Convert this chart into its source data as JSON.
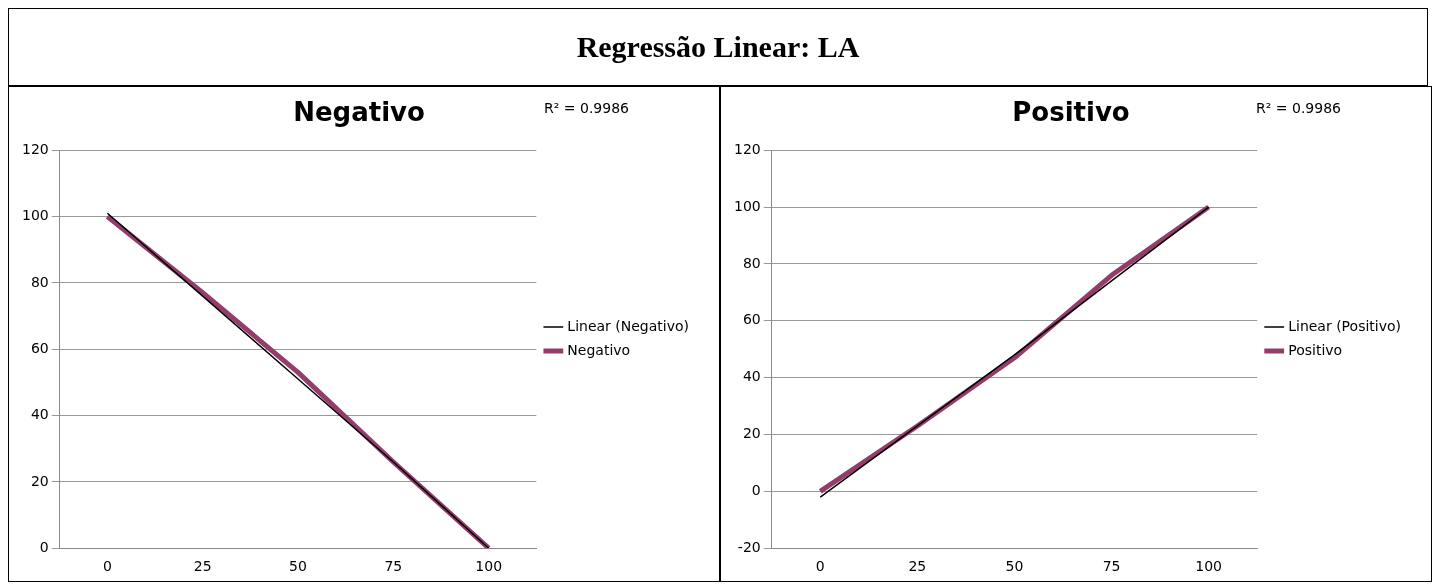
{
  "chart_data": [
    {
      "type": "other",
      "title": "Regressão Linear: LA"
    },
    {
      "type": "line",
      "title": "Negativo",
      "categories": [
        "0",
        "25",
        "50",
        "75",
        "100"
      ],
      "series": [
        {
          "name": "Negativo",
          "color": "#943d6b",
          "values": [
            100,
            77,
            53,
            26,
            0
          ]
        },
        {
          "name": "Linear (Negativo)",
          "color": "#000000",
          "values": [
            101,
            76,
            51,
            26,
            0
          ]
        }
      ],
      "ylim": [
        0,
        120
      ],
      "yticks": [
        0,
        20,
        40,
        60,
        80,
        100,
        120
      ],
      "grid": "y",
      "legend": "right",
      "marker": "none",
      "annotations": [
        "R² = 0.9986"
      ]
    },
    {
      "type": "line",
      "title": "Positivo",
      "categories": [
        "0",
        "25",
        "50",
        "75",
        "100"
      ],
      "series": [
        {
          "name": "Positivo",
          "color": "#943d6b",
          "values": [
            0,
            23,
            47,
            76,
            100
          ]
        },
        {
          "name": "Linear (Positivo)",
          "color": "#000000",
          "values": [
            -2,
            23,
            48,
            74,
            100
          ]
        }
      ],
      "ylim": [
        -20,
        120
      ],
      "yticks": [
        -20,
        0,
        20,
        40,
        60,
        80,
        100,
        120
      ],
      "grid": "y",
      "legend": "right",
      "marker": "none",
      "annotations": [
        "R² = 0.9986"
      ]
    }
  ]
}
